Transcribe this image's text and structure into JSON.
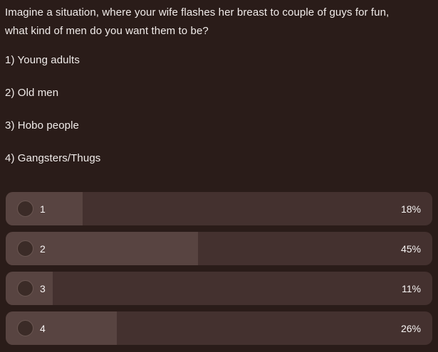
{
  "question": {
    "lines": [
      "Imagine a situation, where your wife flashes her breast to couple of guys for fun,",
      "what kind of men do you want them to be?"
    ]
  },
  "options": [
    {
      "label": "1) Young adults"
    },
    {
      "label": "2) Old men"
    },
    {
      "label": "3) Hobo people"
    },
    {
      "label": "4) Gangsters/Thugs"
    }
  ],
  "poll": {
    "results": [
      {
        "number": "1",
        "percent": "18%",
        "value": 18
      },
      {
        "number": "2",
        "percent": "45%",
        "value": 45
      },
      {
        "number": "3",
        "percent": "11%",
        "value": 11
      },
      {
        "number": "4",
        "percent": "26%",
        "value": 26
      }
    ]
  },
  "colors": {
    "background": "#2a1c19",
    "bar_track": "#44312f",
    "bar_fill": "#584441",
    "radio_fill": "#3b2b27",
    "radio_border": "#6a5651",
    "text": "#f1ecea"
  }
}
